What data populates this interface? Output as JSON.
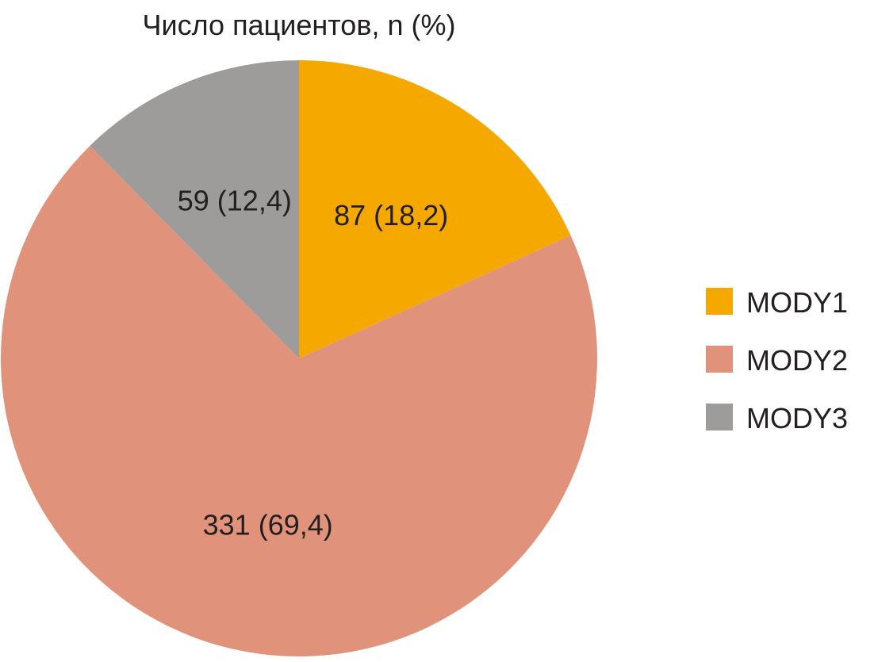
{
  "chart_data": {
    "type": "pie",
    "title": "Число пациентов, n (%)",
    "start_angle_deg": 0,
    "direction": "clockwise",
    "slices": [
      {
        "name": "MODY1",
        "value": 87,
        "percent": 18.2,
        "label": "87 (18,2)",
        "color": "#f5a800"
      },
      {
        "name": "MODY2",
        "value": 331,
        "percent": 69.4,
        "label": "331 (69,4)",
        "color": "#e0937a"
      },
      {
        "name": "MODY3",
        "value": 59,
        "percent": 12.4,
        "label": "59 (12,4)",
        "color": "#9d9c9b"
      }
    ],
    "legend": {
      "position": "right",
      "entries": [
        "MODY1",
        "MODY2",
        "MODY3"
      ]
    }
  }
}
